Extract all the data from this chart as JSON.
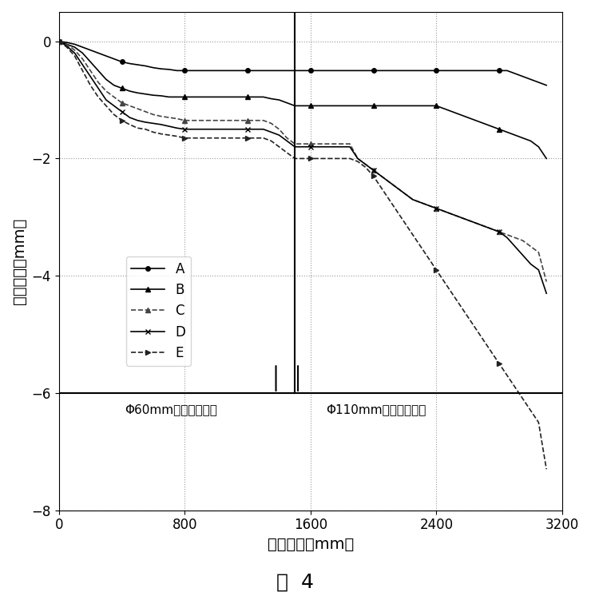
{
  "title": "",
  "xlabel": "钻进距离（mm）",
  "ylabel": "垂向位移（mm）",
  "xlim": [
    0,
    3200
  ],
  "ylim": [
    -8,
    0.5
  ],
  "yticks": [
    0,
    -2,
    -4,
    -6,
    -8
  ],
  "xticks": [
    0,
    800,
    1600,
    2400,
    3200
  ],
  "caption": "图  4",
  "phase1_label": "Φ60mm钻头钻进过程",
  "phase2_label": "Φ110mm钻头钻进过程",
  "phase_boundary": 1500,
  "phase1_end": 1500,
  "phase2_start": 1500,
  "background_color": "#ffffff",
  "grid_color": "#aaaaaa",
  "series": [
    {
      "name": "A",
      "marker": "o",
      "color": "#000000",
      "x": [
        0,
        50,
        100,
        150,
        200,
        250,
        300,
        350,
        400,
        450,
        500,
        550,
        600,
        650,
        700,
        750,
        800,
        850,
        900,
        950,
        1000,
        1050,
        1100,
        1150,
        1200,
        1250,
        1300,
        1350,
        1400,
        1450,
        1500,
        1550,
        1600,
        1650,
        1700,
        1750,
        1800,
        1850,
        1900,
        1950,
        2000,
        2050,
        2100,
        2150,
        2200,
        2250,
        2300,
        2350,
        2400,
        2450,
        2500,
        2550,
        2600,
        2650,
        2700,
        2750,
        2800,
        2850,
        2900,
        2950,
        3000,
        3050,
        3100
      ],
      "y": [
        0,
        -0.02,
        -0.05,
        -0.1,
        -0.15,
        -0.2,
        -0.25,
        -0.3,
        -0.35,
        -0.38,
        -0.4,
        -0.42,
        -0.45,
        -0.47,
        -0.48,
        -0.5,
        -0.5,
        -0.5,
        -0.5,
        -0.5,
        -0.5,
        -0.5,
        -0.5,
        -0.5,
        -0.5,
        -0.5,
        -0.5,
        -0.5,
        -0.5,
        -0.5,
        -0.5,
        -0.5,
        -0.5,
        -0.5,
        -0.5,
        -0.5,
        -0.5,
        -0.5,
        -0.5,
        -0.5,
        -0.5,
        -0.5,
        -0.5,
        -0.5,
        -0.5,
        -0.5,
        -0.5,
        -0.5,
        -0.5,
        -0.5,
        -0.5,
        -0.5,
        -0.5,
        -0.5,
        -0.5,
        -0.5,
        -0.5,
        -0.5,
        -0.55,
        -0.6,
        -0.65,
        -0.7,
        -0.75
      ]
    },
    {
      "name": "B",
      "marker": "^",
      "color": "#000000",
      "x": [
        0,
        50,
        100,
        150,
        200,
        250,
        300,
        350,
        400,
        450,
        500,
        550,
        600,
        650,
        700,
        750,
        800,
        850,
        900,
        950,
        1000,
        1050,
        1100,
        1150,
        1200,
        1250,
        1300,
        1350,
        1400,
        1450,
        1500,
        1550,
        1600,
        1650,
        1700,
        1750,
        1800,
        1850,
        1900,
        1950,
        2000,
        2050,
        2100,
        2150,
        2200,
        2250,
        2300,
        2350,
        2400,
        2450,
        2500,
        2550,
        2600,
        2650,
        2700,
        2750,
        2800,
        2850,
        2900,
        2950,
        3000,
        3050,
        3100
      ],
      "y": [
        0,
        -0.05,
        -0.1,
        -0.2,
        -0.35,
        -0.5,
        -0.65,
        -0.75,
        -0.8,
        -0.85,
        -0.88,
        -0.9,
        -0.92,
        -0.93,
        -0.95,
        -0.95,
        -0.95,
        -0.95,
        -0.95,
        -0.95,
        -0.95,
        -0.95,
        -0.95,
        -0.95,
        -0.95,
        -0.95,
        -0.95,
        -0.98,
        -1.0,
        -1.05,
        -1.1,
        -1.1,
        -1.1,
        -1.1,
        -1.1,
        -1.1,
        -1.1,
        -1.1,
        -1.1,
        -1.1,
        -1.1,
        -1.1,
        -1.1,
        -1.1,
        -1.1,
        -1.1,
        -1.1,
        -1.1,
        -1.1,
        -1.15,
        -1.2,
        -1.25,
        -1.3,
        -1.35,
        -1.4,
        -1.45,
        -1.5,
        -1.55,
        -1.6,
        -1.65,
        -1.7,
        -1.8,
        -2.0
      ]
    },
    {
      "name": "C",
      "marker": "^",
      "color": "#444444",
      "x": [
        0,
        50,
        100,
        150,
        200,
        250,
        300,
        350,
        400,
        450,
        500,
        550,
        600,
        650,
        700,
        750,
        800,
        850,
        900,
        950,
        1000,
        1050,
        1100,
        1150,
        1200,
        1250,
        1300,
        1350,
        1400,
        1450,
        1500,
        1550,
        1600,
        1650,
        1700,
        1750,
        1800,
        1850,
        1900,
        1950,
        2000,
        2050,
        2100,
        2150,
        2200,
        2250,
        2300,
        2350,
        2400,
        2450,
        2500,
        2550,
        2600,
        2650,
        2700,
        2750,
        2800,
        2850,
        2900,
        2950,
        3000,
        3050,
        3100
      ],
      "y": [
        0,
        -0.05,
        -0.15,
        -0.3,
        -0.5,
        -0.7,
        -0.85,
        -0.95,
        -1.05,
        -1.1,
        -1.15,
        -1.2,
        -1.25,
        -1.28,
        -1.3,
        -1.32,
        -1.35,
        -1.35,
        -1.35,
        -1.35,
        -1.35,
        -1.35,
        -1.35,
        -1.35,
        -1.35,
        -1.35,
        -1.35,
        -1.4,
        -1.5,
        -1.65,
        -1.75,
        -1.75,
        -1.75,
        -1.75,
        -1.75,
        -1.75,
        -1.75,
        -1.75,
        -2.0,
        -2.1,
        -2.2,
        -2.3,
        -2.4,
        -2.5,
        -2.6,
        -2.7,
        -2.75,
        -2.8,
        -2.85,
        -2.9,
        -2.95,
        -3.0,
        -3.05,
        -3.1,
        -3.15,
        -3.2,
        -3.25,
        -3.3,
        -3.35,
        -3.4,
        -3.5,
        -3.6,
        -4.1
      ]
    },
    {
      "name": "D",
      "marker": "x",
      "color": "#000000",
      "x": [
        0,
        50,
        100,
        150,
        200,
        250,
        300,
        350,
        400,
        450,
        500,
        550,
        600,
        650,
        700,
        750,
        800,
        850,
        900,
        950,
        1000,
        1050,
        1100,
        1150,
        1200,
        1250,
        1300,
        1350,
        1400,
        1450,
        1500,
        1550,
        1600,
        1650,
        1700,
        1750,
        1800,
        1850,
        1900,
        1950,
        2000,
        2050,
        2100,
        2150,
        2200,
        2250,
        2300,
        2350,
        2400,
        2450,
        2500,
        2550,
        2600,
        2650,
        2700,
        2750,
        2800,
        2850,
        2900,
        2950,
        3000,
        3050,
        3100
      ],
      "y": [
        0,
        -0.08,
        -0.2,
        -0.4,
        -0.6,
        -0.8,
        -1.0,
        -1.1,
        -1.2,
        -1.3,
        -1.35,
        -1.38,
        -1.4,
        -1.42,
        -1.45,
        -1.48,
        -1.5,
        -1.5,
        -1.5,
        -1.5,
        -1.5,
        -1.5,
        -1.5,
        -1.5,
        -1.5,
        -1.5,
        -1.5,
        -1.55,
        -1.6,
        -1.7,
        -1.8,
        -1.8,
        -1.8,
        -1.8,
        -1.8,
        -1.8,
        -1.8,
        -1.8,
        -2.0,
        -2.1,
        -2.2,
        -2.3,
        -2.4,
        -2.5,
        -2.6,
        -2.7,
        -2.75,
        -2.8,
        -2.85,
        -2.9,
        -2.95,
        -3.0,
        -3.05,
        -3.1,
        -3.15,
        -3.2,
        -3.25,
        -3.35,
        -3.5,
        -3.65,
        -3.8,
        -3.9,
        -4.3
      ]
    },
    {
      "name": "E",
      "marker": ">",
      "color": "#222222",
      "x": [
        0,
        50,
        100,
        150,
        200,
        250,
        300,
        350,
        400,
        450,
        500,
        550,
        600,
        650,
        700,
        750,
        800,
        850,
        900,
        950,
        1000,
        1050,
        1100,
        1150,
        1200,
        1250,
        1300,
        1350,
        1400,
        1450,
        1500,
        1550,
        1600,
        1650,
        1700,
        1750,
        1800,
        1850,
        1900,
        1950,
        2000,
        2050,
        2100,
        2150,
        2200,
        2250,
        2300,
        2350,
        2400,
        2450,
        2500,
        2550,
        2600,
        2650,
        2700,
        2750,
        2800,
        2850,
        2900,
        2950,
        3000,
        3050,
        3100
      ],
      "y": [
        0,
        -0.1,
        -0.25,
        -0.5,
        -0.75,
        -0.95,
        -1.1,
        -1.25,
        -1.35,
        -1.42,
        -1.48,
        -1.5,
        -1.55,
        -1.58,
        -1.6,
        -1.62,
        -1.65,
        -1.65,
        -1.65,
        -1.65,
        -1.65,
        -1.65,
        -1.65,
        -1.65,
        -1.65,
        -1.65,
        -1.65,
        -1.7,
        -1.8,
        -1.9,
        -2.0,
        -2.0,
        -2.0,
        -2.0,
        -2.0,
        -2.0,
        -2.0,
        -2.0,
        -2.05,
        -2.15,
        -2.3,
        -2.5,
        -2.7,
        -2.9,
        -3.1,
        -3.3,
        -3.5,
        -3.7,
        -3.9,
        -4.1,
        -4.3,
        -4.5,
        -4.7,
        -4.9,
        -5.1,
        -5.3,
        -5.5,
        -5.7,
        -5.9,
        -6.1,
        -6.3,
        -6.5,
        -7.3
      ]
    }
  ]
}
